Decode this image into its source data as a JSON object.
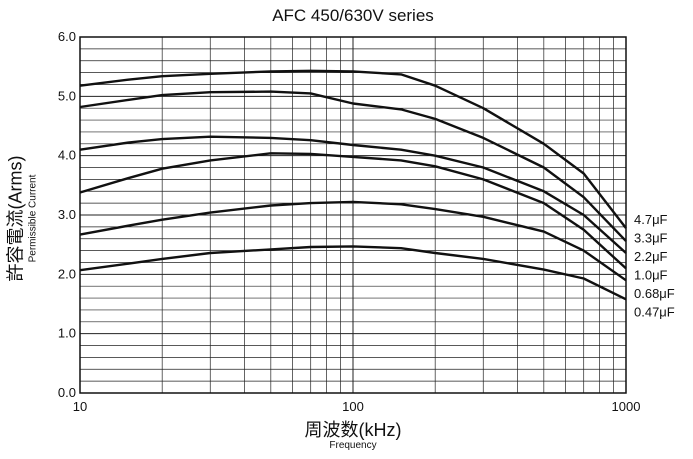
{
  "chart_data": {
    "type": "line",
    "title": "AFC 450/630V series",
    "xlabel": "周波数(kHz)",
    "xlabel_sub": "Frequency",
    "ylabel": "許容電流(Arms)",
    "ylabel_sub": "Permissible Current",
    "xscale": "log",
    "xlim": [
      10,
      1000
    ],
    "ylim": [
      0,
      6
    ],
    "xticks": [
      "10",
      "100",
      "1000"
    ],
    "yticks": [
      "0.0",
      "1.0",
      "2.0",
      "3.0",
      "4.0",
      "5.0",
      "6.0"
    ],
    "grid": true,
    "legend_position": "right",
    "x": [
      10,
      15,
      20,
      30,
      50,
      70,
      100,
      150,
      200,
      300,
      500,
      700,
      1000
    ],
    "series": [
      {
        "name": "4.7μF",
        "values": [
          5.18,
          5.28,
          5.34,
          5.38,
          5.42,
          5.43,
          5.42,
          5.37,
          5.18,
          4.8,
          4.2,
          3.7,
          2.78
        ]
      },
      {
        "name": "3.3μF",
        "values": [
          4.82,
          4.94,
          5.02,
          5.07,
          5.08,
          5.05,
          4.88,
          4.78,
          4.62,
          4.3,
          3.8,
          3.3,
          2.56
        ]
      },
      {
        "name": "2.2μF",
        "values": [
          4.1,
          4.22,
          4.28,
          4.32,
          4.3,
          4.26,
          4.18,
          4.1,
          4.0,
          3.8,
          3.4,
          3.0,
          2.36
        ]
      },
      {
        "name": "1.0μF",
        "values": [
          3.38,
          3.62,
          3.78,
          3.92,
          4.04,
          4.03,
          3.98,
          3.92,
          3.82,
          3.6,
          3.2,
          2.75,
          2.1
        ]
      },
      {
        "name": "0.68μF",
        "values": [
          2.67,
          2.82,
          2.92,
          3.04,
          3.16,
          3.2,
          3.22,
          3.18,
          3.1,
          2.97,
          2.72,
          2.4,
          1.9
        ]
      },
      {
        "name": "0.47μF",
        "values": [
          2.07,
          2.18,
          2.26,
          2.36,
          2.42,
          2.46,
          2.47,
          2.44,
          2.36,
          2.26,
          2.08,
          1.93,
          1.58
        ]
      }
    ]
  }
}
